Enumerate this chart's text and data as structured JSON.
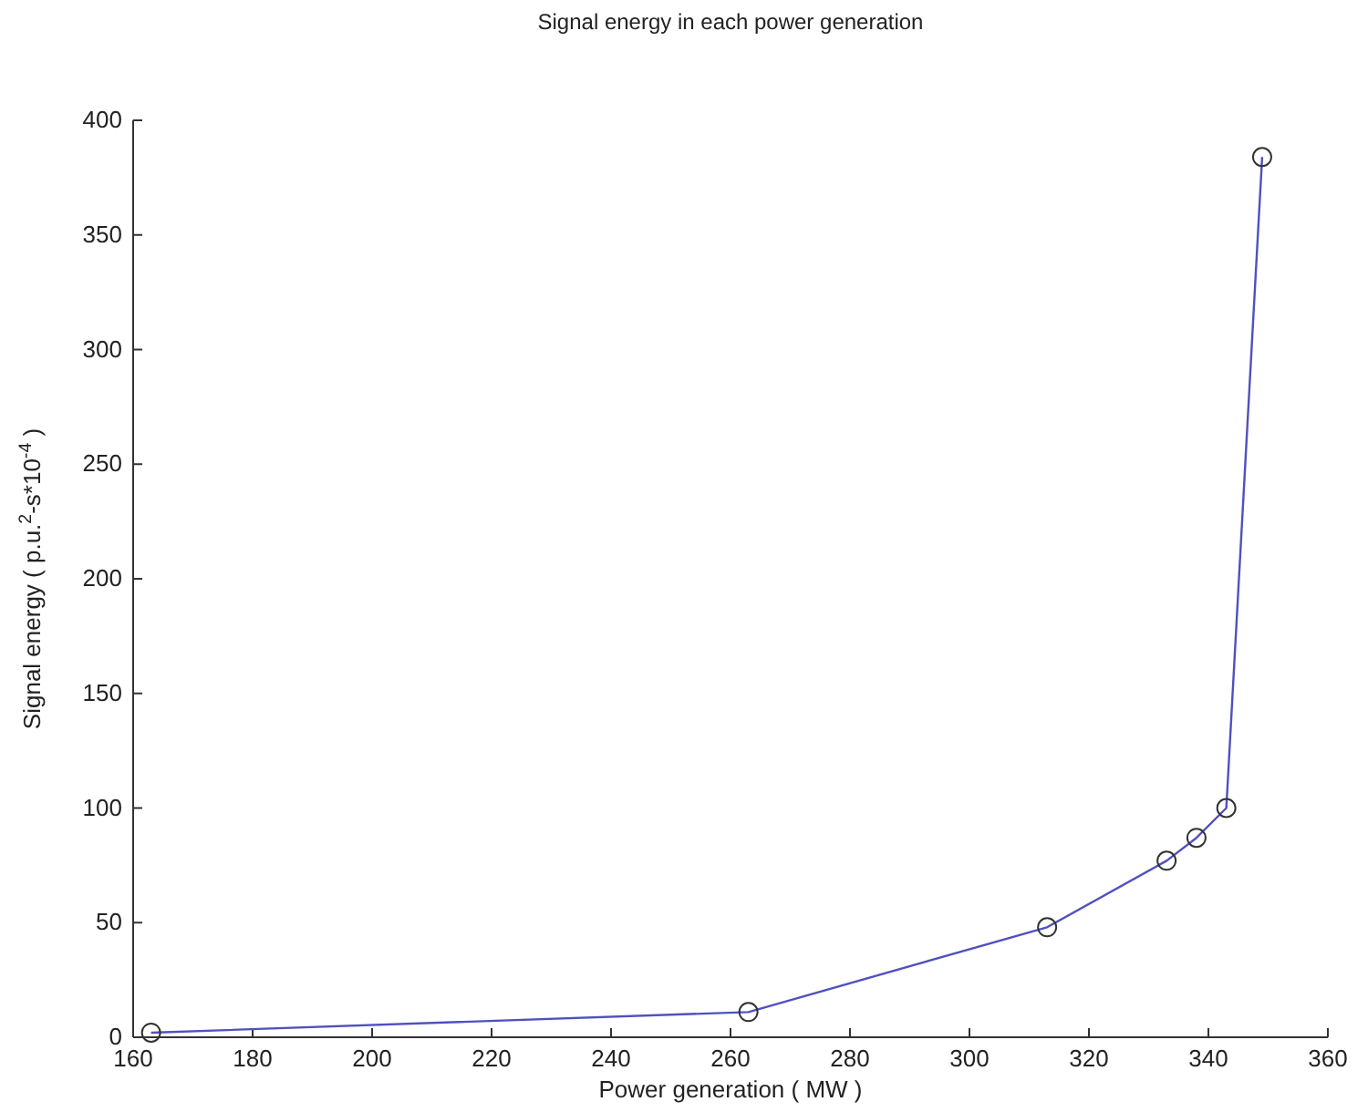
{
  "chart_data": {
    "type": "line",
    "title": "Signal energy in each power generation",
    "xlabel": "Power generation ( MW )",
    "ylabel": "Signal energy ( p.u.$^{2}$-s*10$^{-4}$ )",
    "x": [
      163,
      263,
      313,
      333,
      338,
      343,
      349
    ],
    "series": [
      {
        "color": "#5050c0",
        "values": [
          2,
          11,
          48,
          77,
          87,
          100,
          384
        ]
      }
    ],
    "xlim": [
      160,
      360
    ],
    "xticks": [
      160,
      180,
      200,
      220,
      240,
      260,
      280,
      300,
      320,
      340,
      360
    ],
    "ylim": [
      0,
      400
    ],
    "yticks": [
      0,
      50,
      100,
      150,
      200,
      250,
      300,
      350,
      400
    ],
    "marker": "circle",
    "line_style": "solid"
  }
}
